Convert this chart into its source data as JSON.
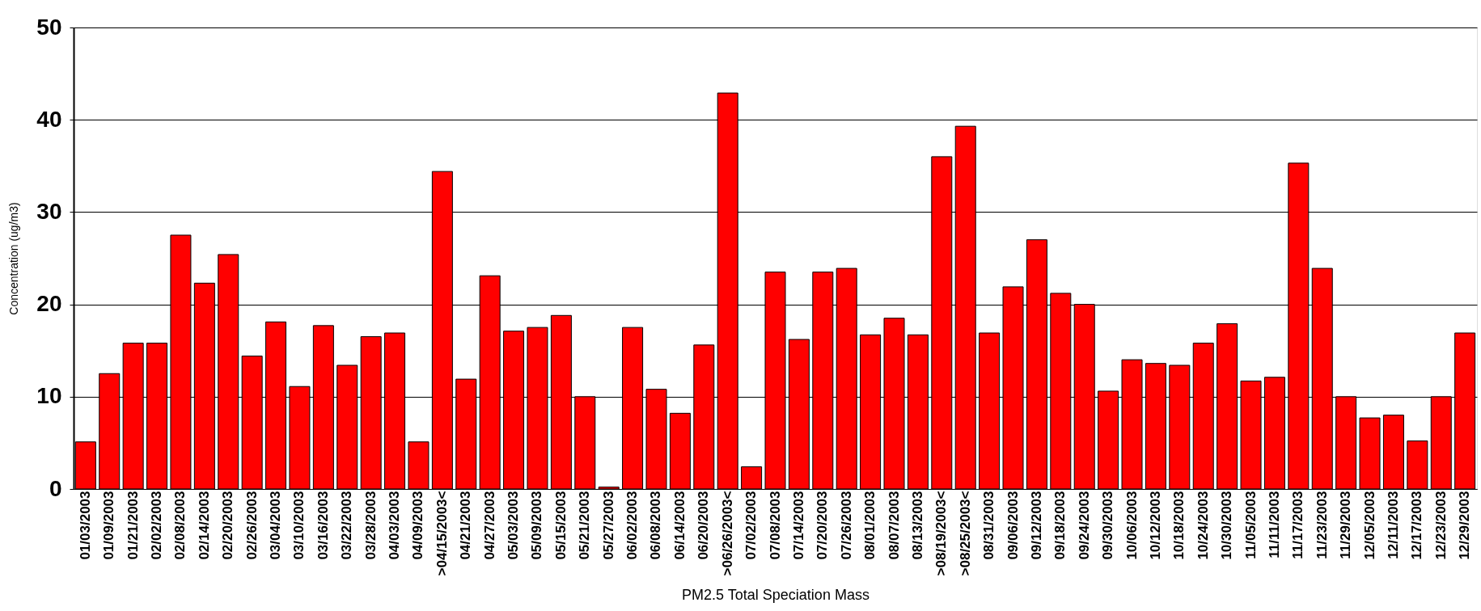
{
  "chart_data": {
    "type": "bar",
    "xlabel": "PM2.5 Total Speciation Mass",
    "ylabel": "Concentration (ug/m3)",
    "categories": [
      "01/03/2003",
      "01/09/2003",
      "01/21/2003",
      "02/02/2003",
      "02/08/2003",
      "02/14/2003",
      "02/20/2003",
      "02/26/2003",
      "03/04/2003",
      "03/10/2003",
      "03/16/2003",
      "03/22/2003",
      "03/28/2003",
      "04/03/2003",
      "04/09/2003",
      ">04/15/2003<",
      "04/21/2003",
      "04/27/2003",
      "05/03/2003",
      "05/09/2003",
      "05/15/2003",
      "05/21/2003",
      "05/27/2003",
      "06/02/2003",
      "06/08/2003",
      "06/14/2003",
      "06/20/2003",
      ">06/26/2003<",
      "07/02/2003",
      "07/08/2003",
      "07/14/2003",
      "07/20/2003",
      "07/26/2003",
      "08/01/2003",
      "08/07/2003",
      "08/13/2003",
      ">08/19/2003<",
      ">08/25/2003<",
      "08/31/2003",
      "09/06/2003",
      "09/12/2003",
      "09/18/2003",
      "09/24/2003",
      "09/30/2003",
      "10/06/2003",
      "10/12/2003",
      "10/18/2003",
      "10/24/2003",
      "10/30/2003",
      "11/05/2003",
      "11/11/2003",
      "11/17/2003",
      "11/23/2003",
      "11/29/2003",
      "12/05/2003",
      "12/11/2003",
      "12/17/2003",
      "12/23/2003",
      "12/29/2003"
    ],
    "values": [
      5.1,
      12.5,
      15.8,
      15.8,
      27.5,
      22.3,
      25.4,
      14.4,
      18.1,
      11.1,
      17.7,
      13.4,
      16.5,
      16.9,
      5.1,
      34.4,
      11.9,
      23.1,
      17.1,
      17.5,
      18.8,
      10.0,
      0.2,
      17.5,
      10.8,
      8.2,
      15.6,
      42.9,
      2.4,
      23.5,
      16.2,
      23.5,
      23.9,
      16.7,
      18.5,
      16.7,
      36.0,
      39.3,
      16.9,
      21.9,
      27.0,
      21.2,
      20.0,
      10.6,
      14.0,
      13.6,
      13.4,
      15.8,
      17.9,
      11.7,
      12.1,
      35.3,
      23.9,
      10.0,
      7.7,
      8.0,
      5.2,
      10.0,
      16.9
    ],
    "color": "#ff0000",
    "ylim": [
      0,
      50
    ],
    "yticks": [
      0,
      10,
      20,
      30,
      40,
      50
    ],
    "grid": "y"
  }
}
